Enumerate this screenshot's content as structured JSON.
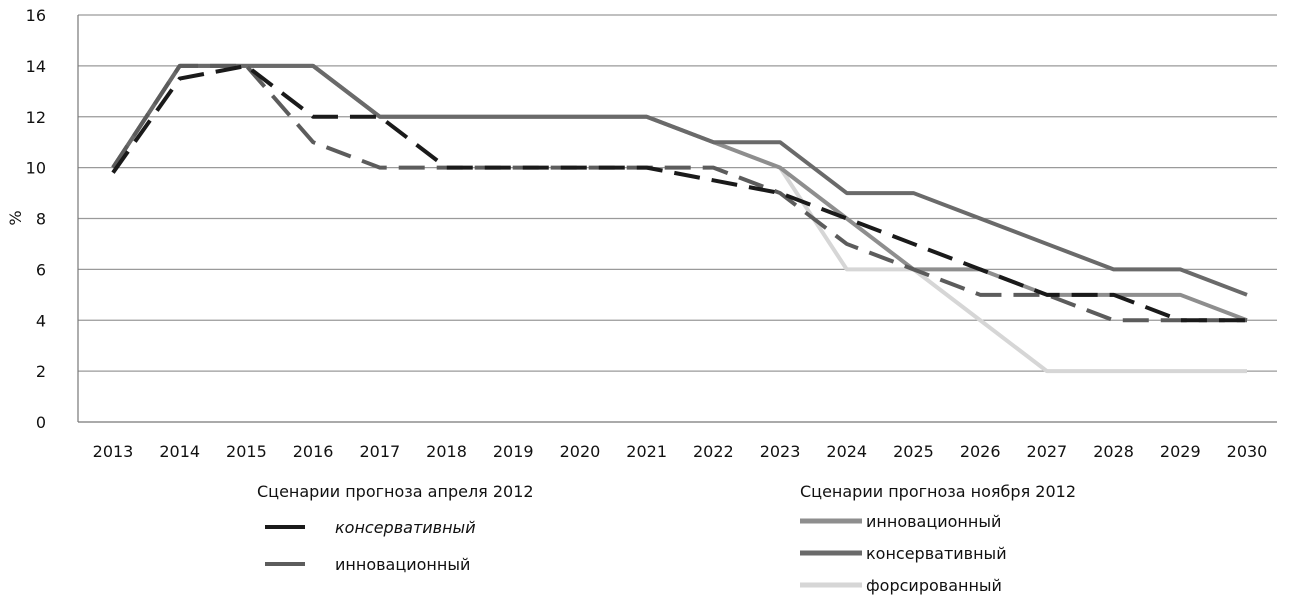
{
  "chart_data": {
    "type": "line",
    "title": "",
    "xlabel": "",
    "ylabel": "%",
    "ylim": [
      0,
      16
    ],
    "y_ticks": [
      0,
      2,
      4,
      6,
      8,
      10,
      12,
      14,
      16
    ],
    "categories": [
      "2013",
      "2014",
      "2015",
      "2016",
      "2017",
      "2018",
      "2019",
      "2020",
      "2021",
      "2022",
      "2023",
      "2024",
      "2025",
      "2026",
      "2027",
      "2028",
      "2029",
      "2030"
    ],
    "grid": true,
    "legends": [
      {
        "title": "Сценарии прогноза апреля 2012",
        "placement": "bottom-left",
        "entries": [
          "консервативный",
          "инновационный"
        ]
      },
      {
        "title": "Сценарии прогноза ноября 2012",
        "placement": "bottom-right",
        "entries": [
          "инновационный",
          "консервативный",
          "форсированный"
        ]
      }
    ],
    "series": [
      {
        "name": "консервативный",
        "group": "Сценарии прогноза апреля 2012",
        "color": "#1a1a1a",
        "dashed": true,
        "italic_label": true,
        "values": [
          9.8,
          13.5,
          14,
          12,
          12,
          10,
          10,
          10,
          10,
          9.5,
          9,
          8,
          7,
          6,
          5,
          5,
          4,
          4
        ]
      },
      {
        "name": "инновационный",
        "group": "Сценарии прогноза апреля 2012",
        "color": "#5c5c5c",
        "dashed": true,
        "italic_label": false,
        "values": [
          10,
          14,
          14,
          11,
          10,
          10,
          10,
          10,
          10,
          10,
          9,
          7,
          6,
          5,
          5,
          4,
          4,
          4
        ]
      },
      {
        "name": "инновационный",
        "group": "Сценарии прогноза ноября 2012",
        "color": "#8e8e8e",
        "dashed": false,
        "italic_label": false,
        "values": [
          10,
          14,
          14,
          14,
          12,
          12,
          12,
          12,
          12,
          11,
          10,
          8,
          6,
          6,
          5,
          5,
          5,
          4
        ]
      },
      {
        "name": "консервативный",
        "group": "Сценарии прогноза ноября 2012",
        "color": "#6a6a6a",
        "dashed": false,
        "italic_label": false,
        "values": [
          10,
          14,
          14,
          14,
          12,
          12,
          12,
          12,
          12,
          11,
          11,
          9,
          9,
          8,
          7,
          6,
          6,
          5
        ]
      },
      {
        "name": "форсированный",
        "group": "Сценарии прогноза ноября 2012",
        "color": "#d6d6d6",
        "dashed": false,
        "italic_label": false,
        "values": [
          10,
          14,
          14,
          14,
          12,
          12,
          12,
          12,
          12,
          11,
          10,
          6,
          6,
          4,
          2,
          2,
          2,
          2
        ]
      }
    ]
  }
}
